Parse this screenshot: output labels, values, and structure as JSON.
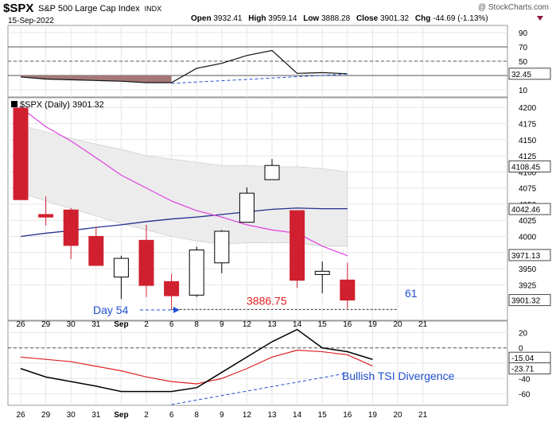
{
  "header": {
    "symbol": "$SPX",
    "name": "S&P 500 Large Cap Index",
    "exchange": "INDX",
    "date": "15-Sep-2022",
    "watermark": "@ StockCharts.com",
    "open_label": "Open",
    "open": "3932.41",
    "high_label": "High",
    "high": "3959.14",
    "low_label": "Low",
    "low": "3888.28",
    "close_label": "Close",
    "close": "3901.32",
    "chg_label": "Chg",
    "chg": "-44.69 (-1.13%)"
  },
  "colors": {
    "down": "#d0202f",
    "up": "#ffffff",
    "ma_short": "#e040e0",
    "ma_long": "#1f2f8f",
    "band_fill": "#ececec",
    "rsi_fill": "#a47878",
    "tsi_line": "#000000",
    "tsi_signal": "#e02020",
    "annotation": "#1f4fd0",
    "annotation_red": "#e02020"
  },
  "chart_data": [
    {
      "type": "line",
      "panel": "indicator-top",
      "ylim": [
        0,
        100
      ],
      "y_ticks": [
        10,
        30,
        50,
        70,
        90
      ],
      "reference_lines": [
        30,
        50,
        70
      ],
      "series": [
        {
          "values": [
            28,
            25,
            24,
            23,
            22,
            20,
            20,
            40,
            47,
            58,
            65,
            33,
            34,
            32.45
          ]
        }
      ],
      "last_value_label": "32.45",
      "trendline": {
        "from_index": 6,
        "from_value": 19,
        "to_index": 13,
        "to_value": 32
      }
    },
    {
      "type": "candlestick",
      "panel": "price",
      "title": "$SPX (Daily) 3901.32",
      "ylim": [
        3870,
        4215
      ],
      "y_ticks": [
        3925,
        3950,
        3975,
        4000,
        4025,
        4050,
        4075,
        4100,
        4125,
        4150,
        4175,
        4200
      ],
      "x_labels": [
        "26",
        "29",
        "30",
        "31",
        "Sep",
        "2",
        "6",
        "8",
        "9",
        "12",
        "13",
        "14",
        "15",
        "16",
        "19",
        "20",
        "21"
      ],
      "x_label_slots": [
        0,
        1,
        2,
        3,
        4,
        5,
        6,
        7,
        8,
        9,
        10,
        11,
        12,
        13,
        14,
        15,
        16
      ],
      "candles": [
        {
          "date": "26",
          "open": 4199,
          "high": 4203,
          "low": 4057,
          "close": 4057
        },
        {
          "date": "29",
          "open": 4034,
          "high": 4062,
          "low": 4017,
          "close": 4030
        },
        {
          "date": "30",
          "open": 4041,
          "high": 4044,
          "low": 3965,
          "close": 3986
        },
        {
          "date": "31",
          "open": 4000,
          "high": 4015,
          "low": 3955,
          "close": 3955
        },
        {
          "date": "Sep",
          "open": 3937,
          "high": 3970,
          "low": 3903,
          "close": 3966
        },
        {
          "date": "2",
          "open": 3994,
          "high": 4018,
          "low": 3906,
          "close": 3924
        },
        {
          "date": "6",
          "open": 3930,
          "high": 3942,
          "low": 3886.75,
          "close": 3908
        },
        {
          "date": "8",
          "open": 3909,
          "high": 3984,
          "low": 3906,
          "close": 3979
        },
        {
          "date": "9",
          "open": 3959,
          "high": 4010,
          "low": 3943,
          "close": 4008
        },
        {
          "date": "12",
          "open": 4022,
          "high": 4076,
          "low": 4022,
          "close": 4067
        },
        {
          "date": "13",
          "open": 4088,
          "high": 4120,
          "low": 4088,
          "close": 4110
        },
        {
          "date": "14",
          "open": 4040,
          "high": 4040,
          "low": 3920,
          "close": 3932
        },
        {
          "date": "15",
          "open": 3941,
          "high": 3961,
          "low": 3912,
          "close": 3946
        },
        {
          "date": "16",
          "open": 3932.41,
          "high": 3959.14,
          "low": 3888.28,
          "close": 3901.32
        }
      ],
      "ma_short": [
        4200,
        4170,
        4148,
        4122,
        4095,
        4075,
        4055,
        4040,
        4030,
        4018,
        4010,
        4005,
        3985,
        3970
      ],
      "ma_long": [
        4000,
        4005,
        4009,
        4014,
        4018,
        4023,
        4027,
        4030,
        4034,
        4038,
        4042,
        4044,
        4043,
        4043
      ],
      "band_upper": [
        4172,
        4162,
        4152,
        4143,
        4135,
        4125,
        4120,
        4115,
        4110,
        4110,
        4108,
        4108,
        4105,
        4100
      ],
      "band_lower": [
        4067,
        4055,
        4043,
        4032,
        4020,
        4010,
        4000,
        3993,
        3988,
        3990,
        3990,
        3990,
        3985,
        3985
      ],
      "value_labels": [
        {
          "text": "4108.45",
          "value": 4108.45
        },
        {
          "text": "4042.46",
          "value": 4042.46
        },
        {
          "text": "3971.13",
          "value": 3971.13
        },
        {
          "text": "3901.32",
          "value": 3901.32
        }
      ],
      "low_reference": 3886.75,
      "annotations": {
        "day54": "Day 54",
        "low_price": "3886.75",
        "count": "61"
      }
    },
    {
      "type": "line",
      "panel": "tsi",
      "ylim": [
        -75,
        35
      ],
      "y_ticks": [
        -60,
        -40,
        -20,
        0,
        20
      ],
      "reference_lines": [
        0
      ],
      "series": [
        {
          "name": "tsi",
          "values": [
            -27,
            -38,
            -44,
            -50,
            -57,
            -57,
            -57,
            -52,
            -32,
            -12,
            8,
            24,
            0,
            -5,
            -15.04
          ]
        },
        {
          "name": "signal",
          "values": [
            -12,
            -15,
            -18,
            -24,
            -30,
            -38,
            -44,
            -47,
            -40,
            -27,
            -12,
            -3,
            -5,
            -9,
            -23.71
          ]
        }
      ],
      "last_value_labels": [
        "-15.04",
        "-23.71"
      ],
      "trendline": {
        "from_index": 6,
        "from_value": -74,
        "to_index": 13,
        "to_value": -33
      },
      "annotation": "Bullish TSI Divergence"
    }
  ]
}
